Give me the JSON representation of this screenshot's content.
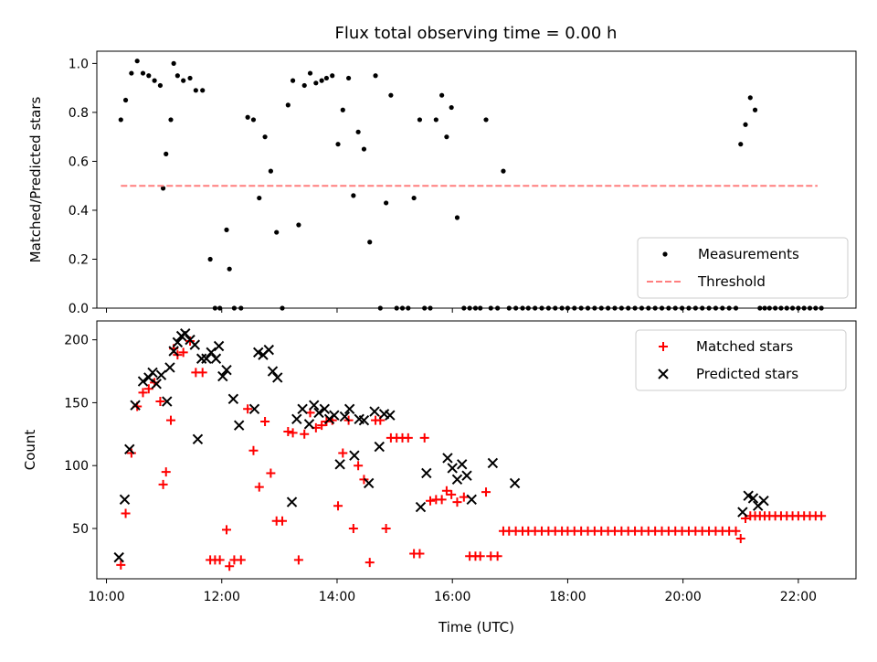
{
  "title": "Flux total observing time = 0.00 h",
  "colors": {
    "measurements": "#000000",
    "threshold": "#ff7f7f",
    "matched": "#ff0000",
    "predicted": "#000000"
  },
  "chart_data": [
    {
      "type": "scatter",
      "ylabel": "Matched/Predicted stars",
      "xlim": [
        "09:50",
        "23:00"
      ],
      "ylim": [
        0,
        1.05
      ],
      "yticks": [
        "0.0",
        "0.2",
        "0.4",
        "0.6",
        "0.8",
        "1.0"
      ],
      "legend_position": "lower-right",
      "series": [
        {
          "name": "Measurements",
          "marker": "dot",
          "x": [
            "10:15",
            "10:20",
            "10:26",
            "10:32",
            "10:38",
            "10:44",
            "10:50",
            "10:56",
            "10:59",
            "11:02",
            "11:07",
            "11:10",
            "11:14",
            "11:20",
            "11:27",
            "11:33",
            "11:40",
            "11:48",
            "11:53",
            "11:58",
            "12:05",
            "12:08",
            "12:13",
            "12:20",
            "12:27",
            "12:33",
            "12:39",
            "12:45",
            "12:51",
            "12:57",
            "13:03",
            "13:09",
            "13:14",
            "13:20",
            "13:26",
            "13:32",
            "13:38",
            "13:44",
            "13:49",
            "13:55",
            "14:01",
            "14:06",
            "14:12",
            "14:17",
            "14:22",
            "14:28",
            "14:34",
            "14:40",
            "14:45",
            "14:51",
            "14:56",
            "15:02",
            "15:08",
            "15:14",
            "15:20",
            "15:26",
            "15:31",
            "15:37",
            "15:43",
            "15:49",
            "15:54",
            "15:59",
            "16:05",
            "16:12",
            "16:18",
            "16:24",
            "16:29",
            "16:35",
            "16:40",
            "16:47",
            "16:53",
            "16:59",
            "17:06",
            "17:13",
            "17:19",
            "17:26",
            "17:33",
            "17:40",
            "17:47",
            "17:54",
            "18:00",
            "18:07",
            "18:14",
            "18:21",
            "18:28",
            "18:35",
            "18:42",
            "18:49",
            "18:56",
            "19:03",
            "19:10",
            "19:17",
            "19:24",
            "19:31",
            "19:38",
            "19:45",
            "19:52",
            "19:59",
            "20:06",
            "20:13",
            "20:20",
            "20:27",
            "20:34",
            "20:41",
            "20:48",
            "20:55",
            "21:00",
            "21:05",
            "21:10",
            "21:15",
            "21:20",
            "21:25",
            "21:30",
            "21:36",
            "21:42",
            "21:48",
            "21:54",
            "22:00",
            "22:06",
            "22:12",
            "22:18",
            "22:24"
          ],
          "y": [
            0.77,
            0.85,
            0.96,
            1.01,
            0.96,
            0.95,
            0.93,
            0.91,
            0.49,
            0.63,
            0.77,
            1.0,
            0.95,
            0.93,
            0.94,
            0.89,
            0.89,
            0.2,
            0,
            0,
            0.32,
            0.16,
            0,
            0,
            0.78,
            0.77,
            0.45,
            0.7,
            0.56,
            0.31,
            0,
            0.83,
            0.93,
            0.34,
            0.91,
            0.96,
            0.92,
            0.93,
            0.94,
            0.95,
            0.67,
            0.81,
            0.94,
            0.46,
            0.72,
            0.65,
            0.27,
            0.95,
            0,
            0.43,
            0.87,
            0,
            0,
            0,
            0.45,
            0.77,
            0,
            0,
            0.77,
            0.87,
            0.7,
            0.82,
            0.37,
            0,
            0,
            0,
            0,
            0.77,
            0,
            0,
            0.56,
            0,
            0,
            0,
            0,
            0,
            0,
            0,
            0,
            0,
            0,
            0,
            0,
            0,
            0,
            0,
            0,
            0,
            0,
            0,
            0,
            0,
            0,
            0,
            0,
            0,
            0,
            0,
            0,
            0,
            0,
            0,
            0,
            0,
            0,
            0,
            0.67,
            0.75,
            0.86,
            0.81,
            0,
            0,
            0,
            0,
            0,
            0,
            0,
            0,
            0,
            0,
            0,
            0
          ]
        },
        {
          "name": "Threshold",
          "marker": "dashed-line",
          "x": [
            "10:15",
            "22:20"
          ],
          "y": [
            0.5,
            0.5
          ]
        }
      ]
    },
    {
      "type": "scatter",
      "xlabel": "Time (UTC)",
      "ylabel": "Count",
      "xlim": [
        "09:50",
        "23:00"
      ],
      "ylim": [
        10,
        215
      ],
      "xticks": [
        "10:00",
        "12:00",
        "14:00",
        "16:00",
        "18:00",
        "20:00",
        "22:00"
      ],
      "yticks": [
        "50",
        "100",
        "150",
        "200"
      ],
      "legend_position": "upper-right",
      "series": [
        {
          "name": "Matched stars",
          "marker": "plus",
          "x": [
            "10:15",
            "10:20",
            "10:26",
            "10:32",
            "10:38",
            "10:44",
            "10:50",
            "10:56",
            "10:59",
            "11:02",
            "11:07",
            "11:10",
            "11:14",
            "11:20",
            "11:27",
            "11:33",
            "11:40",
            "11:48",
            "11:53",
            "11:58",
            "12:05",
            "12:08",
            "12:13",
            "12:20",
            "12:27",
            "12:33",
            "12:39",
            "12:45",
            "12:51",
            "12:57",
            "13:03",
            "13:09",
            "13:14",
            "13:20",
            "13:26",
            "13:32",
            "13:38",
            "13:44",
            "13:49",
            "13:55",
            "14:01",
            "14:06",
            "14:12",
            "14:17",
            "14:22",
            "14:28",
            "14:34",
            "14:40",
            "14:45",
            "14:51",
            "14:56",
            "15:02",
            "15:08",
            "15:14",
            "15:20",
            "15:26",
            "15:31",
            "15:37",
            "15:43",
            "15:49",
            "15:54",
            "15:59",
            "16:05",
            "16:12",
            "16:18",
            "16:24",
            "16:29",
            "16:35",
            "16:40",
            "16:47",
            "16:53",
            "16:59",
            "17:06",
            "17:13",
            "17:19",
            "17:26",
            "17:33",
            "17:40",
            "17:47",
            "17:54",
            "18:00",
            "18:07",
            "18:14",
            "18:21",
            "18:28",
            "18:35",
            "18:42",
            "18:49",
            "18:56",
            "19:03",
            "19:10",
            "19:17",
            "19:24",
            "19:31",
            "19:38",
            "19:45",
            "19:52",
            "19:59",
            "20:06",
            "20:13",
            "20:20",
            "20:27",
            "20:34",
            "20:41",
            "20:48",
            "20:55",
            "21:00",
            "21:05",
            "21:10",
            "21:15",
            "21:20",
            "21:25",
            "21:30",
            "21:36",
            "21:42",
            "21:48",
            "21:54",
            "22:00",
            "22:06",
            "22:12",
            "22:18",
            "22:24"
          ],
          "y": [
            21,
            62,
            110,
            147,
            158,
            161,
            166,
            151,
            85,
            95,
            136,
            193,
            188,
            190,
            199,
            174,
            174,
            25,
            25,
            25,
            49,
            20,
            25,
            25,
            145,
            112,
            83,
            135,
            94,
            56,
            56,
            127,
            126,
            25,
            125,
            142,
            130,
            132,
            135,
            136,
            68,
            110,
            136,
            50,
            100,
            89,
            23,
            136,
            136,
            50,
            122,
            122,
            122,
            122,
            30,
            30,
            122,
            72,
            73,
            73,
            80,
            77,
            71,
            75,
            28,
            28,
            28,
            79,
            28,
            28,
            48,
            48,
            48,
            48,
            48,
            48,
            48,
            48,
            48,
            48,
            48,
            48,
            48,
            48,
            48,
            48,
            48,
            48,
            48,
            48,
            48,
            48,
            48,
            48,
            48,
            48,
            48,
            48,
            48,
            48,
            48,
            48,
            48,
            48,
            48,
            48,
            42,
            58,
            60,
            60,
            60,
            60,
            60,
            60,
            60,
            60,
            60,
            60,
            60,
            60,
            60,
            60
          ]
        },
        {
          "name": "Predicted stars",
          "marker": "x",
          "x": [
            "10:13",
            "10:19",
            "10:24",
            "10:30",
            "10:38",
            "10:44",
            "10:48",
            "10:52",
            "10:57",
            "11:03",
            "11:06",
            "11:10",
            "11:14",
            "11:18",
            "11:22",
            "11:27",
            "11:32",
            "11:35",
            "11:39",
            "11:44",
            "11:49",
            "11:54",
            "11:57",
            "12:01",
            "12:05",
            "12:12",
            "12:18",
            "12:34",
            "12:38",
            "12:43",
            "12:49",
            "12:53",
            "12:58",
            "13:13",
            "13:18",
            "13:24",
            "13:31",
            "13:36",
            "13:41",
            "13:47",
            "13:52",
            "13:57",
            "14:03",
            "14:08",
            "14:13",
            "14:18",
            "14:23",
            "14:28",
            "14:33",
            "14:39",
            "14:44",
            "14:49",
            "14:55",
            "15:27",
            "15:33",
            "15:55",
            "16:00",
            "16:05",
            "16:10",
            "16:15",
            "16:20",
            "16:42",
            "17:05",
            "21:02",
            "21:08",
            "21:13",
            "21:18",
            "21:24"
          ],
          "y": [
            27,
            73,
            113,
            148,
            167,
            170,
            174,
            165,
            172,
            151,
            178,
            191,
            198,
            203,
            205,
            200,
            196,
            121,
            185,
            185,
            190,
            185,
            195,
            171,
            176,
            153,
            132,
            145,
            190,
            188,
            192,
            175,
            170,
            71,
            137,
            145,
            133,
            148,
            142,
            145,
            137,
            140,
            101,
            139,
            145,
            108,
            137,
            136,
            86,
            143,
            115,
            141,
            140,
            67,
            94,
            106,
            98,
            89,
            101,
            92,
            73,
            102,
            86,
            63,
            76,
            74,
            68,
            72
          ]
        }
      ]
    }
  ]
}
